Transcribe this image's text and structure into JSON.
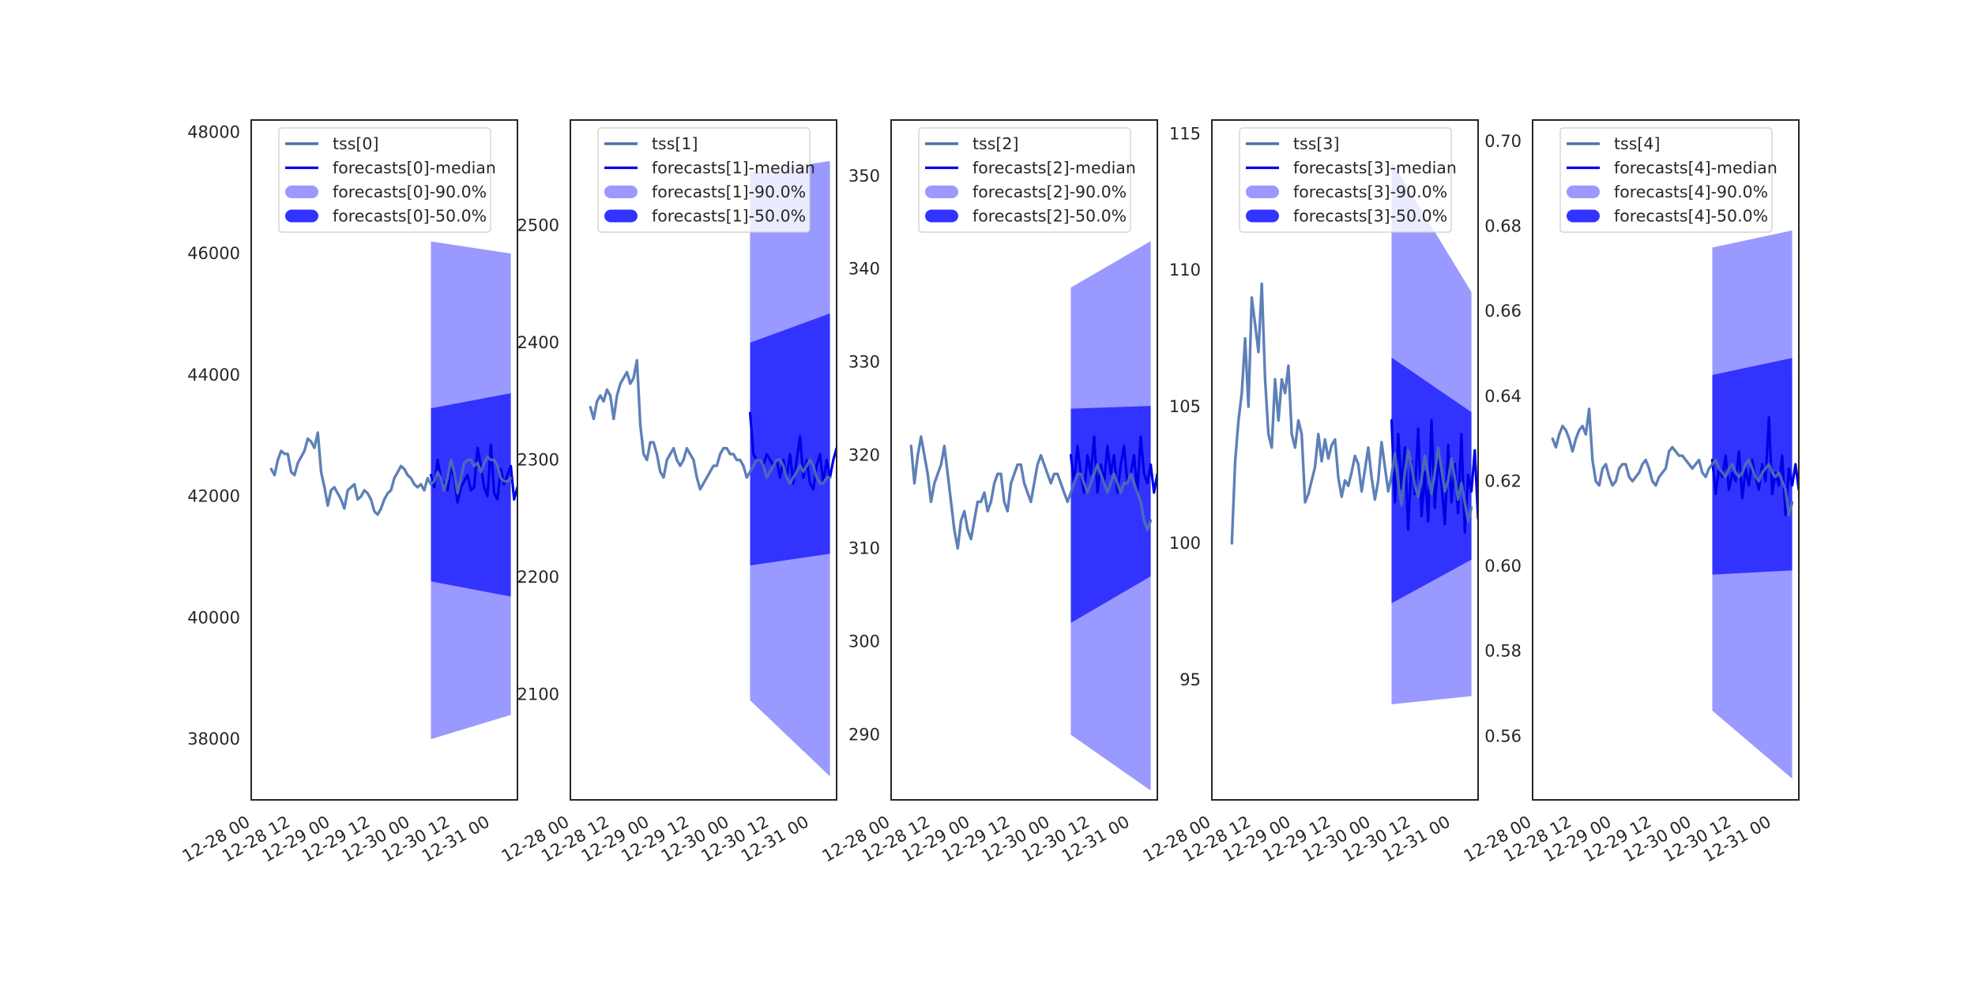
{
  "figure": {
    "background": "#ffffff"
  },
  "colors": {
    "tss": "#4c72b0",
    "median": "#0000e6",
    "band90": "#9999ff",
    "band50": "#3333ff",
    "axes": "#262626"
  },
  "chart_data": [
    {
      "type": "line",
      "title": "",
      "xlabel": "",
      "ylabel": "",
      "xlim": [
        "2020-12-28 00:00",
        "2020-12-31 08:00"
      ],
      "xticks": [
        "12-28 00",
        "12-28 12",
        "12-29 00",
        "12-29 12",
        "12-30 00",
        "12-30 12",
        "12-31 00"
      ],
      "ylim": [
        37000,
        48200
      ],
      "yticks": [
        38000,
        40000,
        42000,
        44000,
        46000,
        48000
      ],
      "grid": false,
      "legend": {
        "placement": "top-center",
        "entries": [
          "tss[0]",
          "forecasts[0]-median",
          "forecasts[0]-90.0%",
          "forecasts[0]-50.0%"
        ]
      },
      "tss": {
        "name": "tss[0]",
        "start": "2020-12-28 06:00",
        "step_hours": 1,
        "values": [
          42450,
          42350,
          42600,
          42750,
          42700,
          42700,
          42400,
          42350,
          42550,
          42650,
          42750,
          42950,
          42900,
          42800,
          43050,
          42400,
          42150,
          41850,
          42100,
          42150,
          42050,
          41950,
          41800,
          42100,
          42150,
          42200,
          41950,
          42000,
          42100,
          42050,
          41950,
          41750,
          41700,
          41800,
          41950,
          42050,
          42100,
          42300,
          42400,
          42500,
          42450,
          42350,
          42300,
          42200,
          42150,
          42200,
          42100,
          42300,
          42200,
          42250,
          42400,
          42300,
          42100,
          42300,
          42600,
          42400,
          42050,
          42300,
          42550,
          42600,
          42600,
          42500,
          42550,
          42400,
          42550,
          42650,
          42600,
          42600,
          42500,
          42300,
          42250,
          42250,
          42300
        ]
      },
      "forecast": {
        "median": {
          "name": "forecasts[0]-median",
          "start": "2020-12-30 06:00",
          "step_hours": 1,
          "values": [
            42350,
            42150,
            42600,
            42300,
            42200,
            42100,
            42500,
            42300,
            41900,
            42150,
            42250,
            42350,
            42100,
            42150,
            42800,
            42500,
            42150,
            42000,
            42850,
            42050,
            41950,
            42450,
            42200,
            42350,
            42500,
            41950,
            42150,
            42250,
            42300,
            42300
          ]
        },
        "band90": {
          "name": "forecasts[0]-90.0%",
          "x": [
            "2020-12-30 06:00",
            "2020-12-31 06:00"
          ],
          "upper": [
            46200,
            46000
          ],
          "lower": [
            38000,
            38400
          ]
        },
        "band50": {
          "name": "forecasts[0]-50.0%",
          "x": [
            "2020-12-30 06:00",
            "2020-12-31 06:00"
          ],
          "upper": [
            43450,
            43700
          ],
          "lower": [
            40600,
            40350
          ]
        }
      }
    },
    {
      "type": "line",
      "title": "",
      "xlabel": "",
      "ylabel": "",
      "xlim": [
        "2020-12-28 00:00",
        "2020-12-31 08:00"
      ],
      "xticks": [
        "12-28 00",
        "12-28 12",
        "12-29 00",
        "12-29 12",
        "12-30 00",
        "12-30 12",
        "12-31 00"
      ],
      "ylim": [
        2010,
        2590
      ],
      "yticks": [
        2100,
        2200,
        2300,
        2400,
        2500
      ],
      "grid": false,
      "legend": {
        "placement": "top-center",
        "entries": [
          "tss[1]",
          "forecasts[1]-median",
          "forecasts[1]-90.0%",
          "forecasts[1]-50.0%"
        ]
      },
      "tss": {
        "name": "tss[1]",
        "start": "2020-12-28 06:00",
        "step_hours": 1,
        "values": [
          2345,
          2335,
          2350,
          2355,
          2350,
          2360,
          2355,
          2335,
          2355,
          2365,
          2370,
          2375,
          2365,
          2370,
          2385,
          2330,
          2305,
          2300,
          2315,
          2315,
          2305,
          2290,
          2285,
          2300,
          2305,
          2310,
          2300,
          2295,
          2300,
          2310,
          2305,
          2300,
          2285,
          2275,
          2280,
          2285,
          2290,
          2295,
          2295,
          2305,
          2310,
          2310,
          2305,
          2305,
          2300,
          2300,
          2295,
          2285,
          2290,
          2295,
          2300,
          2300,
          2295,
          2285,
          2290,
          2295,
          2300,
          2300,
          2295,
          2285,
          2280,
          2285,
          2290,
          2295,
          2290,
          2295,
          2300,
          2295,
          2285,
          2280,
          2280,
          2285,
          2285
        ]
      },
      "forecast": {
        "median": {
          "name": "forecasts[1]-median",
          "start": "2020-12-30 06:00",
          "step_hours": 1,
          "values": [
            2340,
            2305,
            2300,
            2300,
            2295,
            2305,
            2300,
            2295,
            2300,
            2285,
            2300,
            2285,
            2305,
            2280,
            2300,
            2320,
            2285,
            2300,
            2280,
            2275,
            2295,
            2305,
            2280,
            2300,
            2285,
            2300,
            2310,
            2295,
            2300,
            2330
          ]
        },
        "band90": {
          "name": "forecasts[1]-90.0%",
          "x": [
            "2020-12-30 06:00",
            "2020-12-31 06:00"
          ],
          "upper": [
            2545,
            2555
          ],
          "lower": [
            2095,
            2030
          ]
        },
        "band50": {
          "name": "forecasts[1]-50.0%",
          "x": [
            "2020-12-30 06:00",
            "2020-12-31 06:00"
          ],
          "upper": [
            2400,
            2425
          ],
          "lower": [
            2210,
            2220
          ]
        }
      }
    },
    {
      "type": "line",
      "title": "",
      "xlabel": "",
      "ylabel": "",
      "xlim": [
        "2020-12-28 00:00",
        "2020-12-31 08:00"
      ],
      "xticks": [
        "12-28 00",
        "12-28 12",
        "12-29 00",
        "12-29 12",
        "12-30 00",
        "12-30 12",
        "12-31 00"
      ],
      "ylim": [
        283,
        356
      ],
      "yticks": [
        290,
        300,
        310,
        320,
        330,
        340,
        350
      ],
      "grid": false,
      "legend": {
        "placement": "top-center",
        "entries": [
          "tss[2]",
          "forecasts[2]-median",
          "forecasts[2]-90.0%",
          "forecasts[2]-50.0%"
        ]
      },
      "tss": {
        "name": "tss[2]",
        "start": "2020-12-28 06:00",
        "step_hours": 1,
        "values": [
          321,
          317,
          320,
          322,
          320,
          318,
          315,
          317,
          318,
          319,
          321,
          318,
          315,
          312,
          310,
          313,
          314,
          312,
          311,
          313,
          315,
          315,
          316,
          314,
          315,
          317,
          318,
          318,
          315,
          314,
          317,
          318,
          319,
          319,
          317,
          316,
          315,
          317,
          319,
          320,
          319,
          318,
          317,
          318,
          318,
          317,
          316,
          315,
          316,
          317,
          318,
          318,
          317,
          316,
          317,
          318,
          319,
          318,
          317,
          316,
          317,
          318,
          317,
          316,
          317,
          317,
          318,
          317,
          316,
          315,
          313,
          312,
          313
        ]
      },
      "forecast": {
        "median": {
          "name": "forecasts[2]-median",
          "start": "2020-12-30 06:00",
          "step_hours": 1,
          "values": [
            320,
            317,
            321,
            318,
            316,
            320,
            318,
            322,
            316,
            319,
            317,
            321,
            318,
            320,
            316,
            319,
            321,
            317,
            318,
            320,
            316,
            322,
            318,
            317,
            319,
            316,
            318,
            315,
            319,
            323
          ]
        },
        "band90": {
          "name": "forecasts[2]-90.0%",
          "x": [
            "2020-12-30 06:00",
            "2020-12-31 06:00"
          ],
          "upper": [
            338,
            343
          ],
          "lower": [
            290,
            284
          ]
        },
        "band50": {
          "name": "forecasts[2]-50.0%",
          "x": [
            "2020-12-30 06:00",
            "2020-12-31 06:00"
          ],
          "upper": [
            325,
            325.3
          ],
          "lower": [
            302,
            307
          ]
        }
      }
    },
    {
      "type": "line",
      "title": "",
      "xlabel": "",
      "ylabel": "",
      "xlim": [
        "2020-12-28 00:00",
        "2020-12-31 08:00"
      ],
      "xticks": [
        "12-28 00",
        "12-28 12",
        "12-29 00",
        "12-29 12",
        "12-30 00",
        "12-30 12",
        "12-31 00"
      ],
      "ylim": [
        90.6,
        115.5
      ],
      "yticks": [
        95,
        100,
        105,
        110,
        115
      ],
      "grid": false,
      "legend": {
        "placement": "top-center",
        "entries": [
          "tss[3]",
          "forecasts[3]-median",
          "forecasts[3]-90.0%",
          "forecasts[3]-50.0%"
        ]
      },
      "tss": {
        "name": "tss[3]",
        "start": "2020-12-28 06:00",
        "step_hours": 1,
        "values": [
          100,
          103,
          104.5,
          105.5,
          107.5,
          105,
          109,
          108,
          107,
          109.5,
          106,
          104,
          103.5,
          106,
          104.5,
          106,
          105.5,
          106.5,
          104,
          103.5,
          104.5,
          104,
          101.5,
          101.8,
          102.3,
          102.8,
          104,
          103,
          103.8,
          103.1,
          103.6,
          103.8,
          102.4,
          101.7,
          102.3,
          102.1,
          102.6,
          103.2,
          102.9,
          101.9,
          102.7,
          103.5,
          102.4,
          101.6,
          102.3,
          103.7,
          102.8,
          101.9,
          102.5,
          103.3,
          102.2,
          101.4,
          102.6,
          103.4,
          102.8,
          102.1,
          101.7,
          102.4,
          103.2,
          102.5,
          101.8,
          102.6,
          103.5,
          102.7,
          101.9,
          102.3,
          103.1,
          102.4,
          101.6,
          102.2,
          101.5,
          100.8,
          101.3
        ]
      },
      "forecast": {
        "median": {
          "name": "forecasts[3]-median",
          "start": "2020-12-30 06:00",
          "step_hours": 1,
          "values": [
            104.5,
            101.5,
            104,
            102,
            103.5,
            100.5,
            103,
            101.8,
            104.2,
            101,
            102.6,
            100.8,
            104.5,
            101.3,
            103.1,
            102.2,
            100.7,
            103.6,
            101.5,
            102.9,
            101.1,
            104,
            100.4,
            102.5,
            101.9,
            103.4,
            100.9,
            102.8,
            101.7,
            101.9
          ]
        },
        "band90": {
          "name": "forecasts[3]-90.0%",
          "x": [
            "2020-12-30 06:00",
            "2020-12-31 06:00"
          ],
          "upper": [
            114,
            109.2
          ],
          "lower": [
            94.1,
            94.4
          ]
        },
        "band50": {
          "name": "forecasts[3]-50.0%",
          "x": [
            "2020-12-30 06:00",
            "2020-12-31 06:00"
          ],
          "upper": [
            106.8,
            104.8
          ],
          "lower": [
            97.8,
            99.4
          ]
        }
      }
    },
    {
      "type": "line",
      "title": "",
      "xlabel": "",
      "ylabel": "",
      "xlim": [
        "2020-12-28 00:00",
        "2020-12-31 08:00"
      ],
      "xticks": [
        "12-28 00",
        "12-28 12",
        "12-29 00",
        "12-29 12",
        "12-30 00",
        "12-30 12",
        "12-31 00"
      ],
      "ylim": [
        0.545,
        0.705
      ],
      "yticks": [
        0.56,
        0.58,
        0.6,
        0.62,
        0.64,
        0.66,
        0.68,
        0.7
      ],
      "grid": false,
      "legend": {
        "placement": "top-center",
        "entries": [
          "tss[4]",
          "forecasts[4]-median",
          "forecasts[4]-90.0%",
          "forecasts[4]-50.0%"
        ]
      },
      "tss": {
        "name": "tss[4]",
        "start": "2020-12-28 06:00",
        "step_hours": 1,
        "values": [
          0.63,
          0.628,
          0.631,
          0.633,
          0.632,
          0.63,
          0.627,
          0.63,
          0.632,
          0.633,
          0.631,
          0.637,
          0.625,
          0.62,
          0.619,
          0.623,
          0.624,
          0.621,
          0.619,
          0.62,
          0.623,
          0.624,
          0.624,
          0.621,
          0.62,
          0.621,
          0.622,
          0.624,
          0.625,
          0.623,
          0.62,
          0.619,
          0.621,
          0.622,
          0.623,
          0.627,
          0.628,
          0.627,
          0.626,
          0.626,
          0.625,
          0.624,
          0.623,
          0.624,
          0.625,
          0.622,
          0.621,
          0.623,
          0.624,
          0.625,
          0.623,
          0.622,
          0.621,
          0.623,
          0.624,
          0.622,
          0.621,
          0.622,
          0.624,
          0.625,
          0.623,
          0.621,
          0.62,
          0.622,
          0.623,
          0.624,
          0.622,
          0.621,
          0.622,
          0.62,
          0.618,
          0.612,
          0.615
        ]
      },
      "forecast": {
        "median": {
          "name": "forecasts[4]-median",
          "start": "2020-12-30 06:00",
          "step_hours": 1,
          "values": [
            0.625,
            0.617,
            0.623,
            0.621,
            0.626,
            0.618,
            0.622,
            0.62,
            0.627,
            0.616,
            0.623,
            0.619,
            0.625,
            0.621,
            0.618,
            0.624,
            0.62,
            0.635,
            0.617,
            0.622,
            0.619,
            0.626,
            0.612,
            0.623,
            0.619,
            0.624,
            0.618,
            0.625,
            0.627,
            0.621
          ]
        },
        "band90": {
          "name": "forecasts[4]-90.0%",
          "x": [
            "2020-12-30 06:00",
            "2020-12-31 06:00"
          ],
          "upper": [
            0.675,
            0.679
          ],
          "lower": [
            0.566,
            0.55
          ]
        },
        "band50": {
          "name": "forecasts[4]-50.0%",
          "x": [
            "2020-12-30 06:00",
            "2020-12-31 06:00"
          ],
          "upper": [
            0.645,
            0.649
          ],
          "lower": [
            0.598,
            0.599
          ]
        }
      }
    }
  ]
}
